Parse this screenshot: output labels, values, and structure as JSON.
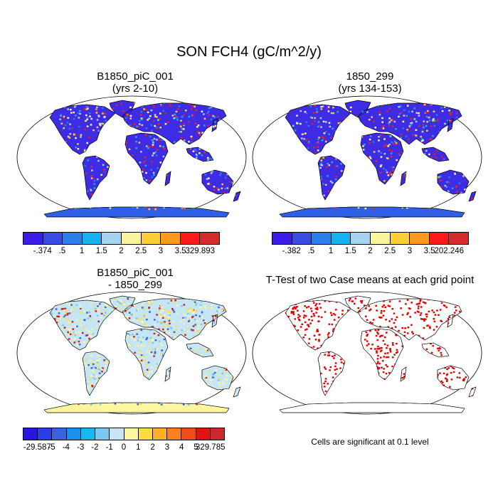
{
  "title": "SON FCH4 (gC/m^2/y)",
  "panels": [
    {
      "id": "case1",
      "title_line1": "B1850_piC_001",
      "title_line2": "(yrs 2-10)",
      "colorbar": {
        "colors": [
          "#3a1ee6",
          "#3a4ce0",
          "#2a7fe8",
          "#18b0ef",
          "#a7d3f3",
          "#fbf49a",
          "#fdcd3a",
          "#fb9a20",
          "#fb1a1a",
          "#d42b2b"
        ],
        "labels": [
          "-.374",
          ".5",
          "1",
          "1.5",
          "2",
          "2.5",
          "3",
          "3.5",
          "329.893"
        ]
      }
    },
    {
      "id": "case2",
      "title_line1": "1850_299",
      "title_line2": "(yrs 134-153)",
      "colorbar": {
        "colors": [
          "#3a1ee6",
          "#3a4ce0",
          "#2a7fe8",
          "#18b0ef",
          "#a7d3f3",
          "#fbf49a",
          "#fdcd3a",
          "#fb9a20",
          "#fb1a1a",
          "#d42b2b"
        ],
        "labels": [
          "-.382",
          ".5",
          "1",
          "1.5",
          "2",
          "2.5",
          "3",
          "3.5",
          "202.246"
        ]
      }
    },
    {
      "id": "diff",
      "title_line1": "B1850_piC_001",
      "title_line2": "- 1850_299",
      "colorbar": {
        "colors": [
          "#2a14e0",
          "#2a3ee6",
          "#3a62dc",
          "#1a90ea",
          "#18b8ee",
          "#7cc6f2",
          "#c6e6f6",
          "#fdf6a0",
          "#fddc40",
          "#fdb02a",
          "#fb8020",
          "#f24a18",
          "#e01414",
          "#c82a2a"
        ],
        "labels": [
          "-29.587",
          "-5",
          "-4",
          "-3",
          "-2",
          "-1",
          "0",
          "1",
          "2",
          "3",
          "4",
          "5",
          "329.785"
        ]
      }
    },
    {
      "id": "ttest",
      "title_line1": "T-Test of two Case means at each grid point",
      "note": "Cells are significant at 0.1 level"
    }
  ],
  "style": {
    "land_high": "#3d2ce4",
    "land_diff": "#c6e6f6",
    "signif": "#e60000"
  }
}
